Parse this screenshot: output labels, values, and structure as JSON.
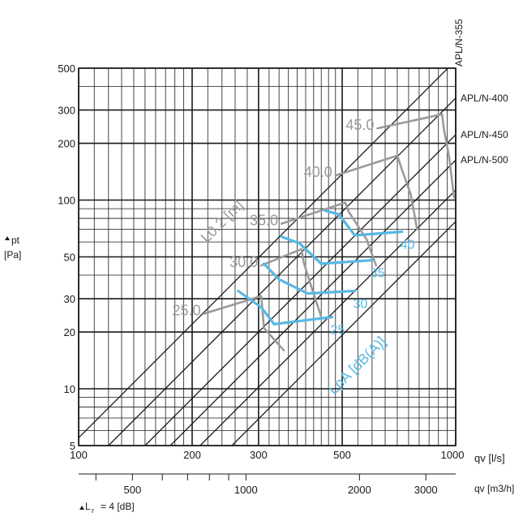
{
  "chart_data": {
    "type": "line",
    "title": "",
    "x_scale": "log",
    "y_scale": "log",
    "xlim": [
      100,
      1000
    ],
    "ylim": [
      5,
      500
    ],
    "grid": true,
    "x_axis_label": "qv [l/s]",
    "x_ticks": [
      100,
      200,
      300,
      500,
      1000
    ],
    "x_tick_labels": [
      "100",
      "200",
      "300",
      "500",
      "1000"
    ],
    "y_axis_label_line1": "pt",
    "y_axis_label_line2": "[Pa]",
    "y_ticks": [
      5,
      10,
      20,
      30,
      50,
      100,
      200,
      300,
      500
    ],
    "y_tick_labels": [
      "5",
      "10",
      "20",
      "30",
      "50",
      "100",
      "200",
      "300",
      "500"
    ],
    "secondary_x_axis": {
      "label": "qv [m3/h]",
      "ticks": [
        500,
        1000,
        2000,
        3000
      ],
      "tick_labels": [
        "500",
        "1000",
        "2000",
        "3000"
      ]
    },
    "footnote_prefix": "L",
    "footnote_sub": "r",
    "footnote_value": "= 4 [dB]",
    "system_lines": [
      {
        "name": "APL/N-355",
        "points": [
          [
            100,
            5.5
          ],
          [
            1000,
            550
          ]
        ]
      },
      {
        "name": "APL/N-400",
        "points": [
          [
            120,
            5
          ],
          [
            1000,
            347
          ]
        ]
      },
      {
        "name": "APL/N-450",
        "points": [
          [
            150,
            5
          ],
          [
            1000,
            222
          ]
        ]
      },
      {
        "name": "APL/N-500",
        "points": [
          [
            175,
            5
          ],
          [
            1000,
            163
          ]
        ]
      },
      {
        "name": "",
        "points": [
          [
            210,
            5
          ],
          [
            1000,
            113
          ]
        ]
      },
      {
        "name": "",
        "points": [
          [
            255,
            5
          ],
          [
            1000,
            77
          ]
        ]
      }
    ],
    "angle_curves": [
      {
        "label": "25.0",
        "points": [
          [
            215,
            25
          ],
          [
            305,
            31
          ],
          [
            310,
            21
          ],
          [
            350,
            16
          ]
        ]
      },
      {
        "label": "30.0",
        "points": [
          [
            305,
            45
          ],
          [
            390,
            55
          ],
          [
            395,
            47
          ],
          [
            410,
            37
          ],
          [
            440,
            24
          ]
        ]
      },
      {
        "label": "35.0",
        "points": [
          [
            345,
            75
          ],
          [
            510,
            97
          ],
          [
            520,
            87
          ],
          [
            580,
            62
          ],
          [
            615,
            45
          ]
        ]
      },
      {
        "label": "40.0",
        "points": [
          [
            480,
            135
          ],
          [
            700,
            172
          ],
          [
            720,
            145
          ],
          [
            760,
            107
          ],
          [
            790,
            70
          ]
        ]
      },
      {
        "label": "45.0",
        "points": [
          [
            620,
            240
          ],
          [
            920,
            285
          ],
          [
            930,
            240
          ],
          [
            960,
            170
          ],
          [
            990,
            103
          ]
        ]
      }
    ],
    "lpa_curves": [
      {
        "label": "25",
        "points": [
          [
            265,
            33
          ],
          [
            305,
            27
          ],
          [
            330,
            22
          ],
          [
            470,
            24
          ]
        ]
      },
      {
        "label": "30",
        "points": [
          [
            310,
            46
          ],
          [
            340,
            38
          ],
          [
            405,
            32
          ],
          [
            540,
            33
          ]
        ]
      },
      {
        "label": "35",
        "points": [
          [
            345,
            64
          ],
          [
            385,
            59
          ],
          [
            440,
            46
          ],
          [
            600,
            48
          ]
        ]
      },
      {
        "label": "40",
        "points": [
          [
            450,
            88
          ],
          [
            490,
            84
          ],
          [
            540,
            65
          ],
          [
            720,
            68
          ]
        ]
      }
    ],
    "angle_axis_label": "L0.2 [m]",
    "lpa_axis_label": "LpA [dB(A)]"
  },
  "colors": {
    "grid": "#1a1a1a",
    "angle": "#9a9a9a",
    "lpa": "#59b8e3"
  }
}
